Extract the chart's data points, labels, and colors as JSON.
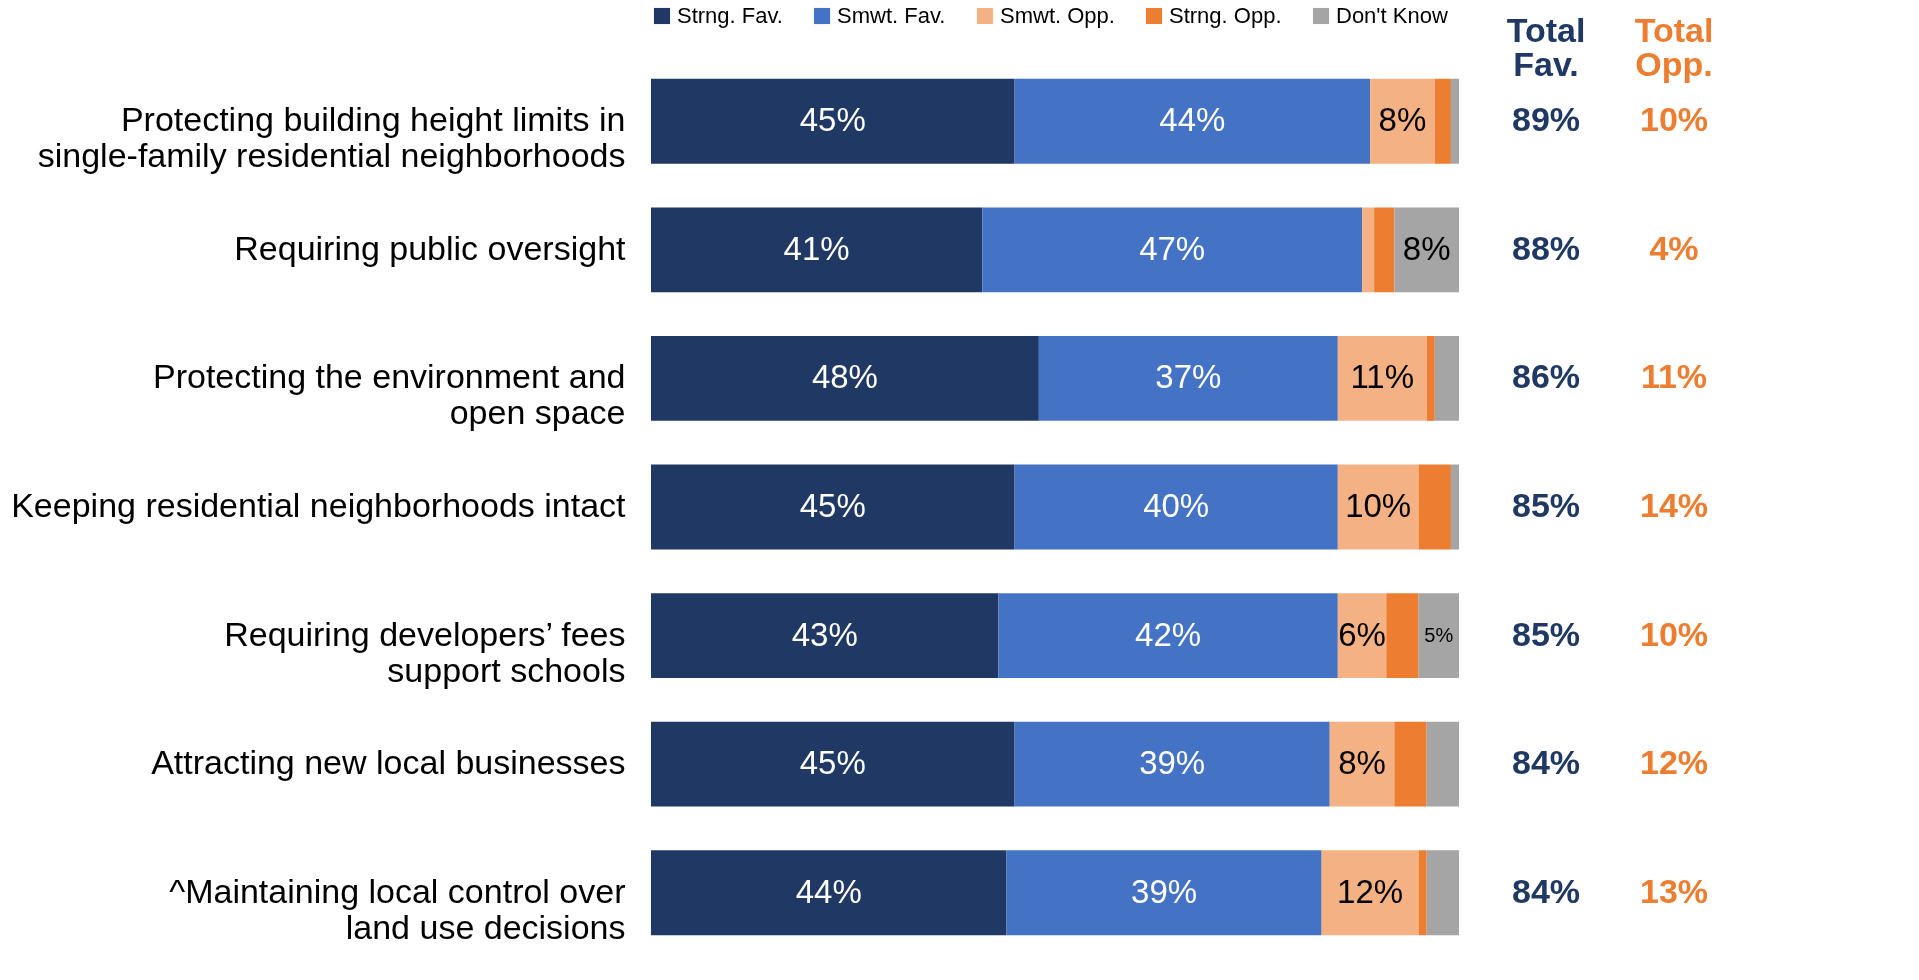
{
  "chart_data": {
    "type": "bar",
    "orientation": "horizontal",
    "stacked": true,
    "legend": "top",
    "categories": [
      "Protecting building height limits in\nsingle-family residential neighborhoods",
      "Requiring public oversight",
      "Protecting the environment and\nopen space",
      "Keeping residential neighborhoods intact",
      "Requiring developers’ fees\nsupport schools",
      "Attracting new local businesses",
      "^Maintaining local control over\nland use decisions"
    ],
    "xlim": [
      0,
      100
    ],
    "series": [
      {
        "name": "Strng. Fav.",
        "color": "#203864",
        "values": [
          45,
          41,
          48,
          45,
          43,
          45,
          44
        ],
        "value_labels": [
          "45%",
          "41%",
          "48%",
          "45%",
          "43%",
          "45%",
          "44%"
        ]
      },
      {
        "name": "Smwt. Fav.",
        "color": "#4472c4",
        "values": [
          44,
          47,
          37,
          40,
          42,
          39,
          39
        ],
        "value_labels": [
          "44%",
          "47%",
          "37%",
          "40%",
          "42%",
          "39%",
          "39%"
        ]
      },
      {
        "name": "Smwt. Opp.",
        "color": "#f4b183",
        "values": [
          8,
          1.5,
          11,
          10,
          6,
          8,
          12
        ],
        "value_labels": [
          "8%",
          null,
          "11%",
          "10%",
          "6%",
          "8%",
          "12%"
        ]
      },
      {
        "name": "Strng. Opp.",
        "color": "#ed7d31",
        "values": [
          2,
          2.5,
          1,
          4,
          4,
          4,
          1
        ],
        "value_labels": [
          null,
          null,
          null,
          null,
          null,
          null,
          null
        ]
      },
      {
        "name": "Don't Know",
        "color": "#a5a5a5",
        "values": [
          1,
          8,
          3,
          1,
          5,
          4,
          4
        ],
        "value_labels": [
          null,
          "8%",
          null,
          null,
          "5%",
          null,
          null
        ]
      }
    ],
    "annotations": [
      "Total\nFav.",
      "Total\nOpp.",
      "89%",
      "10%",
      "88%",
      "4%",
      "86%",
      "11%",
      "85%",
      "14%",
      "85%",
      "10%",
      "84%",
      "12%",
      "84%",
      "13%"
    ]
  }
}
